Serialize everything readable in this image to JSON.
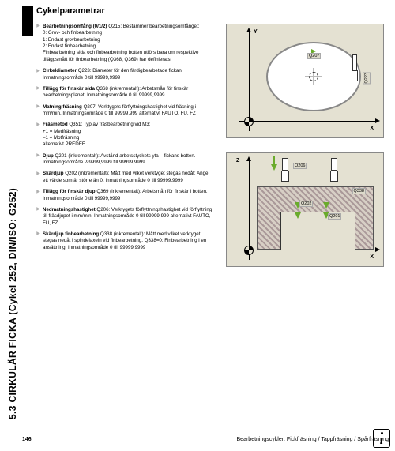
{
  "page": {
    "number": "146",
    "vertical_title": "5.3 CIRKULÄR FICKA (Cykel 252, DIN/ISO: G252)",
    "header": "Cykelparametrar",
    "footer_text": "Bearbetningscykler: Fickfräsning / Tappfräsning / Spårfräsning"
  },
  "diagram1": {
    "y_axis": "Y",
    "x_axis": "X",
    "q207": "Q207",
    "q223": "Q223"
  },
  "diagram2": {
    "z_axis": "Z",
    "x_axis": "X",
    "q206": "Q206",
    "q338": "Q338",
    "q202": "Q202",
    "q201": "Q201"
  },
  "params": [
    {
      "title": "Bearbetningsomfång (0/1/2)",
      "code": "Q215:",
      "body": "Bestämmer bearbetningsomfånget:",
      "subs": [
        "0: Grov- och finbearbetning",
        "1: Endast grovbearbetning",
        "2: Endast finbearbetning",
        "Finbearbetning sida och finbearbetning botten utförs bara om respektive tilläggsmått för finbearbetning (Q368, Q369) har definierats"
      ]
    },
    {
      "title": "Cirkeldiameter",
      "code": "Q223:",
      "body": "Diameter för den färdigbearbetade fickan. Inmatningsområde 0 till 99999,9999",
      "subs": []
    },
    {
      "title": "Tillägg för finskär sida",
      "code": "Q368 (inkrementalt):",
      "body": "Arbetsmån för finskär i bearbetningsplanet. Inmatningsområde 0 till 99999,9999",
      "subs": []
    },
    {
      "title": "Matning fräsning",
      "code": "Q207:",
      "body": "Verktygets förflyttningshastighet vid fräsning i mm/min. Inmatningsområde 0 till 99999,999 alternativt FAUTO, FU, FZ",
      "subs": []
    },
    {
      "title": "Fräsmetod",
      "code": "Q351:",
      "body": "Typ av fräsbearbetning vid M3:",
      "subs": [
        "+1 = Medfräsning",
        "–1 = Motfräsning",
        "alternativt PREDEF"
      ]
    },
    {
      "title": "Djup",
      "code": "Q201 (inkrementalt):",
      "body": "Avstånd arbetsstyckets yta – fickans botten. Inmatningsområde -99999,9999 till 99999,9999",
      "subs": []
    },
    {
      "title": "Skärdjup",
      "code": "Q202 (inkrementalt):",
      "body": "Mått med vilket verktyget stegas nedåt; Ange ett värde som är större än 0. Inmatningsområde 0 till 99999,9999",
      "subs": []
    },
    {
      "title": "Tillägg för finskär djup",
      "code": "Q369 (inkrementalt):",
      "body": "Arbetsmån för finskär i botten. Inmatningsområde 0 till 99999,9999",
      "subs": []
    },
    {
      "title": "Nedmatningshastighet",
      "code": "Q206:",
      "body": "Verktygets förflyttningshastighet vid förflyttning till fräsdjupet i mm/min. Inmatningsområde 0 till 99999,999 alternativt FAUTO, FU, FZ",
      "subs": []
    },
    {
      "title": "Skärdjup finbearbetning",
      "code": "Q338 (inkrementalt):",
      "body": "Mått med vilket verktyget stegas nedåt i spindelaxeln vid finbearbetning. Q338=0: Finbearbetning i en ansättning. Inmatningsområde 0 till 99999,9999",
      "subs": []
    }
  ]
}
